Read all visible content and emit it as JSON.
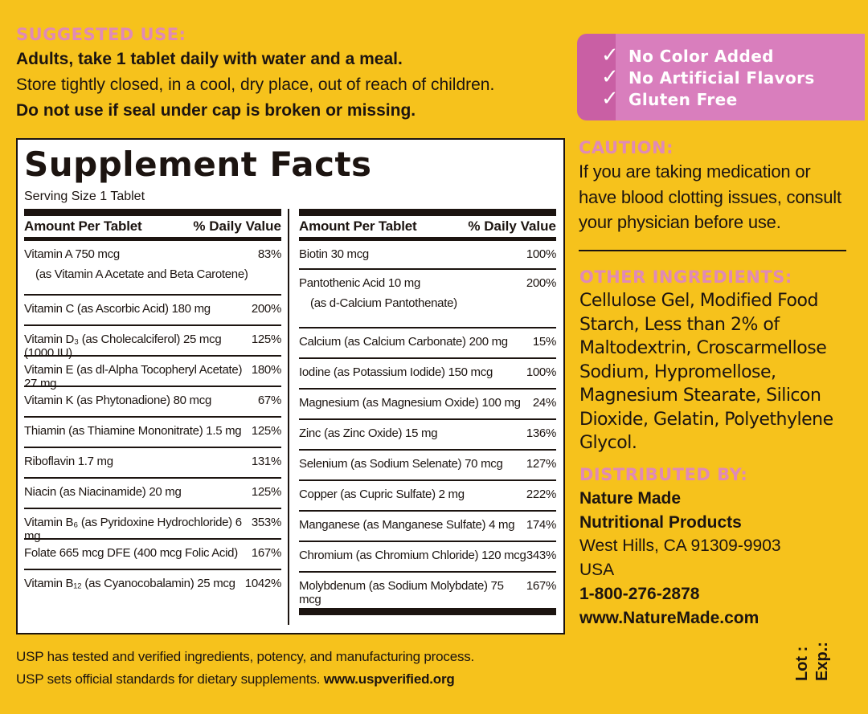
{
  "suggested_use": {
    "heading": "SUGGESTED USE:",
    "line1": "Adults, take 1 tablet daily with water and a meal.",
    "line2": "Store tightly closed, in a cool, dry place, out of reach of children.",
    "line3": "Do not use if seal under cap is broken or missing."
  },
  "badges": {
    "check_icon": "checkmark-icon",
    "items": [
      "No Color Added",
      "No Artificial Flavors",
      "Gluten Free"
    ]
  },
  "supplement_facts": {
    "title": "Supplement Facts",
    "serving_size": "Serving Size 1 Tablet",
    "col_header_amount": "Amount Per Tablet",
    "col_header_dv": "% Daily Value",
    "left": [
      {
        "name": "Vitamin A  750 mcg",
        "dv": "83%",
        "sub": "(as Vitamin A Acetate and Beta Carotene)"
      },
      {
        "name": "Vitamin C (as Ascorbic Acid)  180 mg",
        "dv": "200%"
      },
      {
        "name": "Vitamin D₃ (as Cholecalciferol)  25 mcg (1000 IU)",
        "dv": "125%"
      },
      {
        "name": "Vitamin E (as dl-Alpha Tocopheryl Acetate)  27 mg",
        "dv": "180%"
      },
      {
        "name": "Vitamin K (as Phytonadione)  80 mcg",
        "dv": "67%"
      },
      {
        "name": "Thiamin (as Thiamine Mononitrate)  1.5 mg",
        "dv": "125%"
      },
      {
        "name": "Riboflavin  1.7 mg",
        "dv": "131%"
      },
      {
        "name": "Niacin (as Niacinamide)  20 mg",
        "dv": "125%"
      },
      {
        "name": "Vitamin B₆ (as Pyridoxine Hydrochloride)  6 mg",
        "dv": "353%"
      },
      {
        "name": "Folate  665 mcg DFE (400 mcg Folic Acid)",
        "dv": "167%"
      },
      {
        "name": "Vitamin B₁₂ (as Cyanocobalamin)  25 mcg",
        "dv": "1042%"
      }
    ],
    "right": [
      {
        "name": "Biotin  30 mcg",
        "dv": "100%"
      },
      {
        "name": "Pantothenic Acid  10 mg",
        "dv": "200%",
        "sub": "(as d-Calcium Pantothenate)"
      },
      {
        "name": "Calcium (as Calcium Carbonate)  200 mg",
        "dv": "15%"
      },
      {
        "name": "Iodine (as Potassium Iodide)  150 mcg",
        "dv": "100%"
      },
      {
        "name": "Magnesium (as Magnesium Oxide)  100 mg",
        "dv": "24%"
      },
      {
        "name": "Zinc (as Zinc Oxide)  15 mg",
        "dv": "136%"
      },
      {
        "name": "Selenium (as Sodium Selenate)  70 mcg",
        "dv": "127%"
      },
      {
        "name": "Copper (as Cupric Sulfate)  2 mg",
        "dv": "222%"
      },
      {
        "name": "Manganese (as Manganese Sulfate)  4 mg",
        "dv": "174%"
      },
      {
        "name": "Chromium (as Chromium Chloride)  120 mcg",
        "dv": "343%"
      },
      {
        "name": "Molybdenum (as Sodium Molybdate)  75 mcg",
        "dv": "167%"
      }
    ]
  },
  "caution": {
    "heading": "CAUTION:",
    "lines": [
      "If you are taking medication or",
      "have blood clotting issues, consult",
      "your physician before use."
    ]
  },
  "other_ingredients": {
    "heading": "OTHER INGREDIENTS:",
    "lines": [
      "Cellulose Gel, Modified Food",
      "Starch, Less than 2% of",
      "Maltodextrin, Croscarmellose",
      "Sodium, Hypromellose,",
      "Magnesium Stearate, Silicon",
      "Dioxide, Gelatin, Polyethylene",
      "Glycol."
    ]
  },
  "distributed_by": {
    "heading": "DISTRIBUTED BY:",
    "company_line1": "Nature Made",
    "company_line2": "Nutritional Products",
    "city": "West Hills, CA 91309-9903",
    "country": "USA",
    "phone": "1-800-276-2878",
    "website": "www.NatureMade.com"
  },
  "usp": {
    "line1": "USP has tested and verified ingredients, potency, and manufacturing process.",
    "line2": "USP sets official standards for dietary supplements.",
    "link": "www.uspverified.org"
  },
  "lot_label": "Lot :",
  "exp_label": "Exp.:",
  "colors": {
    "background": "#f6c21c",
    "pink_heading": "#e08ab6",
    "badge_dark": "#c95fa4",
    "badge_light": "#d97ebd",
    "text": "#1c1410"
  }
}
